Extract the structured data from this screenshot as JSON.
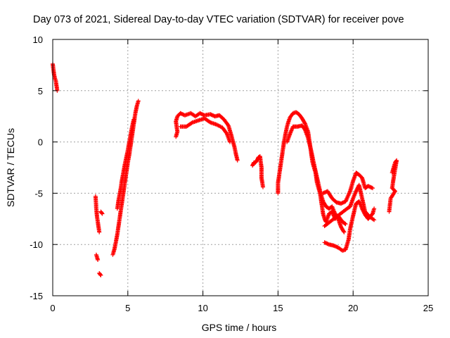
{
  "chart_data": {
    "type": "scatter",
    "title": "Day 073 of 2021, Sidereal Day-to-day VTEC variation (SDTVAR) for receiver pove",
    "xlabel": "GPS time / hours",
    "ylabel": "SDTVAR / TECUs",
    "xlim": [
      0,
      25
    ],
    "ylim": [
      -15,
      10
    ],
    "xticks": [
      0,
      5,
      10,
      15,
      20,
      25
    ],
    "yticks": [
      -15,
      -10,
      -5,
      0,
      5,
      10
    ],
    "xtick_labels": [
      "0",
      "5",
      "10",
      "15",
      "20",
      "25"
    ],
    "ytick_labels": [
      "-15",
      "-10",
      "-5",
      "0",
      "5",
      "10"
    ],
    "grid": true,
    "marker": "+",
    "series_color": "#ff0000",
    "series": [
      {
        "name": "SDTVAR",
        "segments": [
          [
            [
              0.0,
              7.6
            ],
            [
              0.05,
              7.0
            ],
            [
              0.1,
              6.5
            ],
            [
              0.15,
              6.2
            ],
            [
              0.2,
              6.0
            ],
            [
              0.25,
              5.5
            ],
            [
              0.3,
              5.0
            ]
          ],
          [
            [
              2.85,
              -5.3
            ],
            [
              2.9,
              -6.5
            ],
            [
              2.95,
              -7.3
            ],
            [
              3.0,
              -7.8
            ],
            [
              3.05,
              -8.3
            ],
            [
              3.1,
              -8.8
            ]
          ],
          [
            [
              2.9,
              -11.0
            ],
            [
              3.0,
              -11.5
            ]
          ],
          [
            [
              3.1,
              -12.8
            ],
            [
              3.2,
              -13.0
            ]
          ],
          [
            [
              3.3,
              -7.0
            ],
            [
              3.2,
              -6.8
            ]
          ],
          [
            [
              4.0,
              -11.0
            ],
            [
              4.1,
              -10.5
            ],
            [
              4.2,
              -9.8
            ],
            [
              4.3,
              -9.0
            ],
            [
              4.4,
              -8.0
            ],
            [
              4.5,
              -7.0
            ],
            [
              4.6,
              -6.0
            ],
            [
              4.7,
              -5.0
            ],
            [
              4.8,
              -4.0
            ],
            [
              4.9,
              -3.0
            ],
            [
              5.0,
              -2.0
            ],
            [
              5.1,
              -1.2
            ],
            [
              5.2,
              -0.2
            ],
            [
              5.3,
              0.8
            ],
            [
              5.4,
              1.8
            ],
            [
              5.5,
              2.8
            ],
            [
              5.6,
              3.5
            ],
            [
              5.7,
              4.0
            ]
          ],
          [
            [
              4.3,
              -6.5
            ],
            [
              4.4,
              -5.5
            ],
            [
              4.5,
              -4.8
            ],
            [
              4.6,
              -3.8
            ],
            [
              4.7,
              -3.0
            ],
            [
              4.8,
              -2.2
            ],
            [
              4.9,
              -1.5
            ],
            [
              5.0,
              -0.8
            ],
            [
              5.1,
              0.0
            ],
            [
              5.2,
              0.8
            ],
            [
              5.3,
              1.6
            ],
            [
              5.4,
              2.2
            ]
          ],
          [
            [
              8.2,
              0.5
            ],
            [
              8.3,
              1.0
            ],
            [
              8.2,
              2.0
            ],
            [
              8.3,
              2.5
            ],
            [
              8.5,
              2.8
            ],
            [
              8.8,
              2.6
            ],
            [
              9.2,
              2.8
            ],
            [
              9.5,
              2.5
            ],
            [
              9.8,
              2.8
            ],
            [
              10.1,
              2.6
            ],
            [
              10.5,
              2.7
            ],
            [
              10.8,
              2.5
            ],
            [
              11.1,
              2.6
            ],
            [
              11.4,
              2.2
            ],
            [
              11.7,
              1.6
            ],
            [
              11.9,
              0.6
            ],
            [
              12.1,
              -0.5
            ],
            [
              12.2,
              -1.2
            ],
            [
              12.3,
              -1.8
            ]
          ],
          [
            [
              8.5,
              1.5
            ],
            [
              8.9,
              1.5
            ],
            [
              9.3,
              1.9
            ],
            [
              9.7,
              2.1
            ],
            [
              10.1,
              2.3
            ],
            [
              10.5,
              1.9
            ],
            [
              10.9,
              1.7
            ],
            [
              11.3,
              1.4
            ],
            [
              11.6,
              0.8
            ],
            [
              11.8,
              0.0
            ]
          ],
          [
            [
              13.3,
              -2.3
            ],
            [
              13.4,
              -2.0
            ],
            [
              13.5,
              -2.0
            ],
            [
              13.6,
              -1.8
            ],
            [
              13.7,
              -1.5
            ],
            [
              13.8,
              -1.4
            ],
            [
              13.9,
              -2.5
            ],
            [
              13.9,
              -3.5
            ],
            [
              14.0,
              -4.4
            ]
          ],
          [
            [
              15.0,
              -5.0
            ],
            [
              15.0,
              -4.0
            ],
            [
              15.1,
              -3.0
            ],
            [
              15.2,
              -2.0
            ],
            [
              15.3,
              -1.0
            ],
            [
              15.4,
              0.0
            ],
            [
              15.5,
              0.8
            ],
            [
              15.6,
              1.5
            ],
            [
              15.7,
              2.0
            ],
            [
              15.8,
              2.4
            ],
            [
              16.0,
              2.8
            ],
            [
              16.2,
              2.9
            ],
            [
              16.4,
              2.7
            ],
            [
              16.6,
              2.3
            ],
            [
              16.8,
              1.8
            ],
            [
              17.0,
              1.0
            ],
            [
              17.1,
              0.0
            ],
            [
              17.2,
              -1.0
            ],
            [
              17.3,
              -2.0
            ],
            [
              17.5,
              -3.0
            ],
            [
              17.6,
              -4.0
            ],
            [
              17.8,
              -5.0
            ],
            [
              17.9,
              -6.0
            ],
            [
              18.0,
              -7.0
            ],
            [
              18.1,
              -7.5
            ],
            [
              18.2,
              -7.8
            ],
            [
              18.4,
              -7.0
            ],
            [
              18.6,
              -6.8
            ],
            [
              18.8,
              -7.5
            ],
            [
              19.0,
              -7.2
            ],
            [
              19.3,
              -7.8
            ],
            [
              19.5,
              -8.0
            ]
          ],
          [
            [
              15.6,
              0.0
            ],
            [
              15.8,
              0.8
            ],
            [
              16.0,
              1.5
            ],
            [
              16.3,
              1.5
            ],
            [
              16.6,
              1.6
            ],
            [
              16.8,
              1.2
            ],
            [
              17.0,
              0.4
            ],
            [
              17.2,
              -0.8
            ],
            [
              17.4,
              -2.2
            ],
            [
              17.6,
              -3.5
            ],
            [
              17.8,
              -4.8
            ],
            [
              18.0,
              -5.8
            ],
            [
              18.2,
              -6.3
            ],
            [
              18.4,
              -6.5
            ],
            [
              18.6,
              -6.3
            ],
            [
              18.8,
              -7.0
            ],
            [
              19.0,
              -7.5
            ],
            [
              19.2,
              -8.3
            ],
            [
              19.4,
              -8.8
            ]
          ],
          [
            [
              18.0,
              -5.0
            ],
            [
              18.3,
              -4.8
            ],
            [
              18.6,
              -5.5
            ],
            [
              18.9,
              -5.9
            ],
            [
              19.2,
              -6.0
            ],
            [
              19.5,
              -5.8
            ],
            [
              19.8,
              -4.8
            ],
            [
              20.0,
              -3.8
            ],
            [
              20.2,
              -3.0
            ],
            [
              20.4,
              -3.2
            ],
            [
              20.6,
              -3.5
            ],
            [
              20.8,
              -4.5
            ],
            [
              21.0,
              -4.3
            ],
            [
              21.3,
              -4.5
            ]
          ],
          [
            [
              18.1,
              -9.8
            ],
            [
              18.4,
              -10.0
            ],
            [
              18.7,
              -10.1
            ],
            [
              19.0,
              -10.3
            ],
            [
              19.3,
              -10.6
            ],
            [
              19.5,
              -10.5
            ],
            [
              19.7,
              -9.5
            ],
            [
              19.8,
              -8.5
            ],
            [
              20.0,
              -7.2
            ],
            [
              20.2,
              -6.0
            ],
            [
              20.4,
              -5.8
            ],
            [
              20.6,
              -6.5
            ],
            [
              20.8,
              -7.1
            ],
            [
              21.0,
              -7.5
            ],
            [
              21.3,
              -7.0
            ],
            [
              21.4,
              -6.5
            ]
          ],
          [
            [
              18.1,
              -8.2
            ],
            [
              19.6,
              -6.5
            ],
            [
              19.8,
              -6.3
            ],
            [
              20.0,
              -5.5
            ],
            [
              20.2,
              -4.8
            ],
            [
              20.4,
              -4.2
            ],
            [
              20.6,
              -5.5
            ],
            [
              20.8,
              -6.8
            ],
            [
              21.1,
              -7.3
            ],
            [
              21.4,
              -7.6
            ]
          ],
          [
            [
              22.6,
              -3.0
            ],
            [
              22.7,
              -2.5
            ],
            [
              22.8,
              -2.0
            ],
            [
              22.9,
              -1.8
            ],
            [
              22.7,
              -3.5
            ],
            [
              22.6,
              -4.5
            ],
            [
              22.8,
              -4.8
            ],
            [
              22.5,
              -5.5
            ],
            [
              22.4,
              -6.8
            ]
          ]
        ]
      }
    ]
  }
}
